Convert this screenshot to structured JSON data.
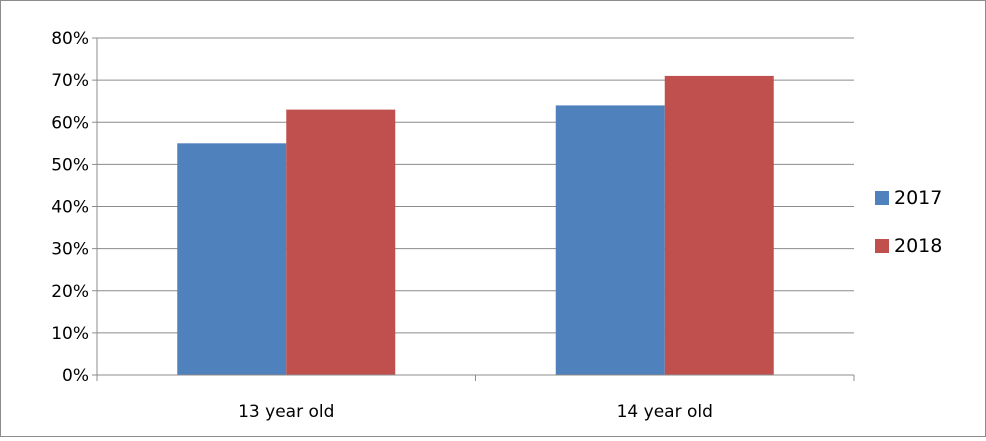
{
  "chart_data": {
    "type": "bar",
    "categories": [
      "13 year old",
      "14 year old"
    ],
    "series": [
      {
        "name": "2017",
        "values": [
          0.55,
          0.64
        ],
        "color": "#4f81bd"
      },
      {
        "name": "2018",
        "values": [
          0.63,
          0.71
        ],
        "color": "#c0504d"
      }
    ],
    "ylim": [
      0,
      0.8
    ],
    "y_ticks": [
      "0%",
      "10%",
      "20%",
      "30%",
      "40%",
      "50%",
      "60%",
      "70%",
      "80%"
    ],
    "grid": true,
    "legend_position": "right",
    "gridline_color": "#8c8c8c",
    "axis_color": "#8c8c8c"
  }
}
